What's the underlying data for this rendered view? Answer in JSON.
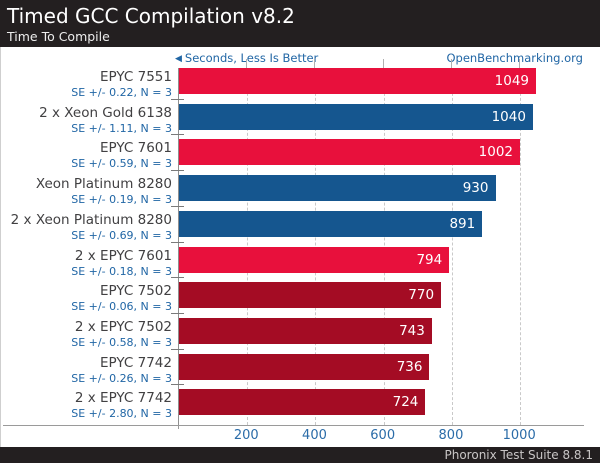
{
  "header": {
    "title": "Timed GCC Compilation v8.2",
    "subtitle": "Time To Compile"
  },
  "legend": {
    "label": "Seconds, Less Is Better",
    "site_link": "OpenBenchmarking.org"
  },
  "footer": {
    "label": "Phoronix Test Suite 8.8.1"
  },
  "colors": {
    "header_bg": "#231f20",
    "bright_red": "#e8103c",
    "blue": "#15568f",
    "dark_red": "#a40c24",
    "text_blue": "#2166a5",
    "label_gray": "#414042"
  },
  "chart_data": {
    "type": "bar",
    "orientation": "horizontal",
    "title": "Timed GCC Compilation v8.2",
    "subtitle": "Time To Compile",
    "value_unit": "Seconds",
    "note": "Less Is Better",
    "xlim": [
      0,
      1190
    ],
    "x_ticks": [
      200,
      400,
      600,
      800,
      1000
    ],
    "grid": true,
    "legend_position": "top-left",
    "rows": [
      {
        "label": "EPYC 7551",
        "se_note": "SE +/- 0.22, N = 3",
        "value": 1049,
        "color_key": "bright_red"
      },
      {
        "label": "2 x Xeon Gold 6138",
        "se_note": "SE +/- 1.11, N = 3",
        "value": 1040,
        "color_key": "blue"
      },
      {
        "label": "EPYC 7601",
        "se_note": "SE +/- 0.59, N = 3",
        "value": 1002,
        "color_key": "bright_red"
      },
      {
        "label": "Xeon Platinum 8280",
        "se_note": "SE +/- 0.19, N = 3",
        "value": 930,
        "color_key": "blue"
      },
      {
        "label": "2 x Xeon Platinum 8280",
        "se_note": "SE +/- 0.69, N = 3",
        "value": 891,
        "color_key": "blue"
      },
      {
        "label": "2 x EPYC 7601",
        "se_note": "SE +/- 0.18, N = 3",
        "value": 794,
        "color_key": "bright_red"
      },
      {
        "label": "EPYC 7502",
        "se_note": "SE +/- 0.06, N = 3",
        "value": 770,
        "color_key": "dark_red"
      },
      {
        "label": "2 x EPYC 7502",
        "se_note": "SE +/- 0.58, N = 3",
        "value": 743,
        "color_key": "dark_red"
      },
      {
        "label": "EPYC 7742",
        "se_note": "SE +/- 0.26, N = 3",
        "value": 736,
        "color_key": "dark_red"
      },
      {
        "label": "2 x EPYC 7742",
        "se_note": "SE +/- 2.80, N = 3",
        "value": 724,
        "color_key": "dark_red"
      }
    ]
  }
}
